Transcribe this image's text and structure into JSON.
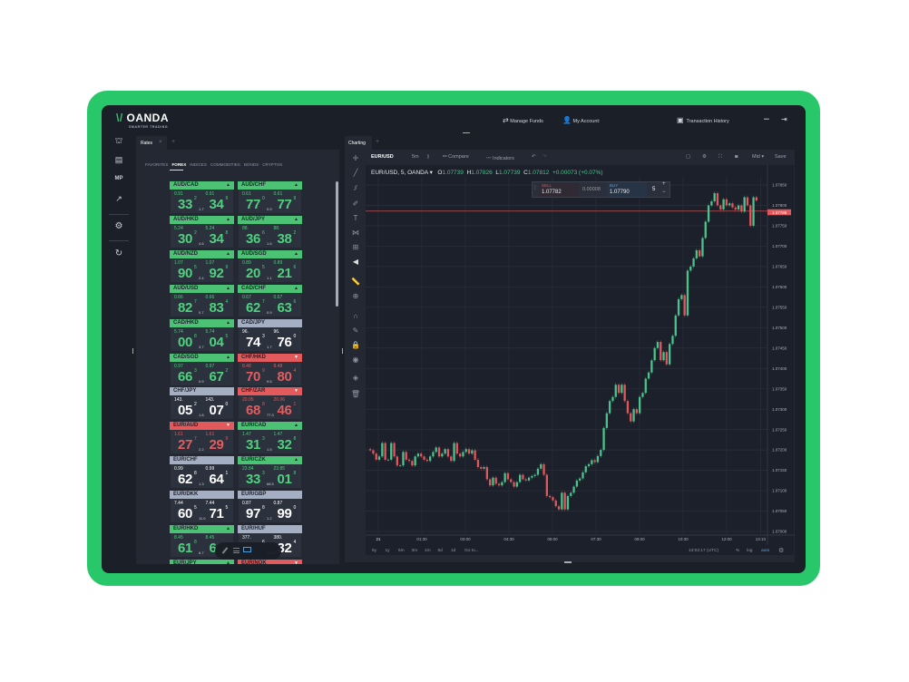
{
  "brand": {
    "name": "OANDA",
    "tagline": "SMARTER TRADING",
    "accent": "#27c76a"
  },
  "header": {
    "manage_funds": "Manage Funds",
    "my_account": "My Account:",
    "transaction_history": "Transaction History",
    "more": "•••"
  },
  "sidebar": {
    "items": [
      {
        "icon": "bank-icon"
      },
      {
        "icon": "news-icon"
      },
      {
        "label": "MP"
      },
      {
        "icon": "chart-trend-icon"
      },
      {
        "icon": "gear-icon"
      },
      {
        "icon": "refresh-icon"
      }
    ]
  },
  "rates": {
    "tab": "Rates",
    "close": "×",
    "add": "+",
    "categories": [
      "FAVORITES",
      "FOREX",
      "INDICES",
      "COMMODITIES",
      "BONDS",
      "CRYPTOS"
    ],
    "active_category": "FOREX",
    "colors": {
      "up": "#4cc274",
      "down": "#e25a5c",
      "neutral": "#a4afc4",
      "up_text": "#4fd17e",
      "down_text": "#e35d5f",
      "neutral_text": "#ffffff"
    },
    "tiles": [
      {
        "pair": "AUD/CAD",
        "dir": "up",
        "sell": {
          "big": "0.91",
          "pips": "33",
          "frac": "2"
        },
        "buy": {
          "big": "0.91",
          "pips": "34",
          "frac": "9"
        },
        "spread": "1.7"
      },
      {
        "pair": "AUD/CHF",
        "dir": "up",
        "sell": {
          "big": "0.61",
          "pips": "77",
          "frac": "0"
        },
        "buy": {
          "big": "0.61",
          "pips": "77",
          "frac": "9"
        },
        "spread": "0.9"
      },
      {
        "pair": "AUD/HKD",
        "dir": "up",
        "sell": {
          "big": "5.24",
          "pips": "30",
          "frac": "2"
        },
        "buy": {
          "big": "5.24",
          "pips": "34",
          "frac": "8"
        },
        "spread": "4.6"
      },
      {
        "pair": "AUD/JPY",
        "dir": "up",
        "sell": {
          "big": "88.",
          "pips": "36",
          "frac": "6"
        },
        "buy": {
          "big": "88.",
          "pips": "38",
          "frac": "2"
        },
        "spread": "1.6"
      },
      {
        "pair": "AUD/NZD",
        "dir": "up",
        "sell": {
          "big": "1.07",
          "pips": "90",
          "frac": "5"
        },
        "buy": {
          "big": "1.07",
          "pips": "92",
          "frac": "9"
        },
        "spread": "2.4"
      },
      {
        "pair": "AUD/SGD",
        "dir": "up",
        "sell": {
          "big": "0.89",
          "pips": "20",
          "frac": "5"
        },
        "buy": {
          "big": "0.89",
          "pips": "21",
          "frac": "6"
        },
        "spread": "1.1"
      },
      {
        "pair": "AUD/USD",
        "dir": "up",
        "sell": {
          "big": "0.66",
          "pips": "82",
          "frac": "7"
        },
        "buy": {
          "big": "0.66",
          "pips": "83",
          "frac": "4"
        },
        "spread": "0.7"
      },
      {
        "pair": "CAD/CHF",
        "dir": "up",
        "sell": {
          "big": "0.67",
          "pips": "62",
          "frac": "7"
        },
        "buy": {
          "big": "0.67",
          "pips": "63",
          "frac": "6"
        },
        "spread": "0.9"
      },
      {
        "pair": "CAD/HKD",
        "dir": "up",
        "sell": {
          "big": "5.74",
          "pips": "00",
          "frac": "8"
        },
        "buy": {
          "big": "5.74",
          "pips": "04",
          "frac": "5"
        },
        "spread": "3.7"
      },
      {
        "pair": "CAD/JPY",
        "dir": "neutral",
        "sell": {
          "big": "96.",
          "pips": "74",
          "frac": "3"
        },
        "buy": {
          "big": "96.",
          "pips": "76",
          "frac": "0"
        },
        "spread": "1.7"
      },
      {
        "pair": "CAD/SGD",
        "dir": "up",
        "sell": {
          "big": "0.97",
          "pips": "66",
          "frac": "3"
        },
        "buy": {
          "big": "0.97",
          "pips": "67",
          "frac": "2"
        },
        "spread": "0.9"
      },
      {
        "pair": "CHF/HKD",
        "dir": "down",
        "sell": {
          "big": "8.48",
          "pips": "70",
          "frac": "9"
        },
        "buy": {
          "big": "8.48",
          "pips": "80",
          "frac": "4"
        },
        "spread": "9.5"
      },
      {
        "pair": "CHF/JPY",
        "dir": "neutral",
        "sell": {
          "big": "143.",
          "pips": "05",
          "frac": "2"
        },
        "buy": {
          "big": "143.",
          "pips": "07",
          "frac": "0"
        },
        "spread": "1.8"
      },
      {
        "pair": "CHF/ZAR",
        "dir": "down",
        "sell": {
          "big": "20.05",
          "pips": "68",
          "frac": "8"
        },
        "buy": {
          "big": "20.06",
          "pips": "46",
          "frac": "1"
        },
        "spread": "77.3"
      },
      {
        "pair": "EUR/AUD",
        "dir": "down",
        "sell": {
          "big": "1.61",
          "pips": "27",
          "frac": "7"
        },
        "buy": {
          "big": "1.61",
          "pips": "29",
          "frac": "9"
        },
        "spread": "2.2"
      },
      {
        "pair": "EUR/CAD",
        "dir": "up",
        "sell": {
          "big": "1.47",
          "pips": "31",
          "frac": "3"
        },
        "buy": {
          "big": "1.47",
          "pips": "32",
          "frac": "8"
        },
        "spread": "1.5"
      },
      {
        "pair": "EUR/CHF",
        "dir": "neutral",
        "sell": {
          "big": "0.99",
          "pips": "62",
          "frac": "8"
        },
        "buy": {
          "big": "0.99",
          "pips": "64",
          "frac": "1"
        },
        "spread": "1.3"
      },
      {
        "pair": "EUR/CZK",
        "dir": "up",
        "sell": {
          "big": "23.84",
          "pips": "33",
          "frac": "3"
        },
        "buy": {
          "big": "23.85",
          "pips": "01",
          "frac": "8"
        },
        "spread": "68.5"
      },
      {
        "pair": "EUR/DKK",
        "dir": "neutral",
        "sell": {
          "big": "7.44",
          "pips": "60",
          "frac": "5"
        },
        "buy": {
          "big": "7.44",
          "pips": "71",
          "frac": "5"
        },
        "spread": "11.0"
      },
      {
        "pair": "EUR/GBP",
        "dir": "neutral",
        "sell": {
          "big": "0.87",
          "pips": "97",
          "frac": "8"
        },
        "buy": {
          "big": "0.87",
          "pips": "99",
          "frac": "0"
        },
        "spread": "1.2"
      },
      {
        "pair": "EUR/HKD",
        "dir": "up",
        "sell": {
          "big": "8.45",
          "pips": "61",
          "frac": "8"
        },
        "buy": {
          "big": "8.45",
          "pips": "6",
          "frac": ""
        },
        "spread": "6.7"
      },
      {
        "pair": "EUR/HUF",
        "dir": "neutral",
        "sell": {
          "big": "377.",
          "pips": "",
          "frac": "6"
        },
        "buy": {
          "big": "380.",
          "pips": "32",
          "frac": "4"
        },
        "spread": "299.8"
      },
      {
        "pair": "EUR/JPY",
        "dir": "up",
        "sell": {
          "big": "",
          "pips": "",
          "frac": ""
        },
        "buy": {
          "big": "",
          "pips": "",
          "frac": ""
        },
        "spread": ""
      },
      {
        "pair": "EUR/NOK",
        "dir": "down",
        "sell": {
          "big": "",
          "pips": "",
          "frac": ""
        },
        "buy": {
          "big": "",
          "pips": "",
          "frac": ""
        },
        "spread": ""
      }
    ]
  },
  "charting": {
    "tab": "Charting",
    "add": "+",
    "symbol": "EUR/USD",
    "interval": "5m",
    "compare": "Compare",
    "indicators": "Indicators",
    "price_source": "Mid ▾",
    "save": "Save",
    "legend": {
      "title": "EUR/USD, 5, OANDA ▾",
      "o_label": "O",
      "o": "1.07739",
      "h_label": "H",
      "h": "1.07826",
      "l_label": "L",
      "l": "1.07739",
      "c_label": "C",
      "c": "1.07812",
      "change": "+0.00073 (+0.07%)"
    },
    "trade": {
      "sell_label": "SELL",
      "sell_price": "1.07782",
      "spread": "0.00008",
      "buy_label": "BUY",
      "buy_price": "1.07790",
      "quantity": "5",
      "plus": "+",
      "minus": "−"
    },
    "ranges": [
      "5y",
      "1y",
      "6m",
      "3m",
      "1m",
      "5d",
      "1d"
    ],
    "goto": "Go to...",
    "clock": "13:02:17 (UTC)",
    "pct": "%",
    "log": "log",
    "auto": "auto"
  },
  "chart_data": {
    "type": "candlestick",
    "symbol": "EUR/USD",
    "interval_minutes": 5,
    "ylim": [
      1.07,
      1.0787
    ],
    "y_ticks": [
      "1.07000",
      "1.07050",
      "1.07100",
      "1.07150",
      "1.07200",
      "1.07250",
      "1.07300",
      "1.07350",
      "1.07400",
      "1.07450",
      "1.07500",
      "1.07550",
      "1.07600",
      "1.07650",
      "1.07700",
      "1.07750",
      "1.07800",
      "1.07850"
    ],
    "x_ticks": [
      {
        "label": "21",
        "minute": 0
      },
      {
        "label": "01:30",
        "minute": 90
      },
      {
        "label": "03:00",
        "minute": 180
      },
      {
        "label": "04:30",
        "minute": 270
      },
      {
        "label": "06:00",
        "minute": 360
      },
      {
        "label": "07:30",
        "minute": 450
      },
      {
        "label": "09:00",
        "minute": 540
      },
      {
        "label": "10:30",
        "minute": 630
      },
      {
        "label": "12:00",
        "minute": 720
      },
      {
        "label": "13:10",
        "minute": 790
      }
    ],
    "current_price": "1.07786",
    "up_color": "#4cc28c",
    "down_color": "#e2575c",
    "closes": [
      1.07199,
      1.07191,
      1.07176,
      1.07184,
      1.07217,
      1.07176,
      1.07176,
      1.07217,
      1.07184,
      1.07162,
      1.07162,
      1.07195,
      1.07176,
      1.07173,
      1.07162,
      1.07184,
      1.07191,
      1.07184,
      1.07176,
      1.07173,
      1.07184,
      1.07195,
      1.07206,
      1.07184,
      1.07191,
      1.07202,
      1.07184,
      1.07173,
      1.07217,
      1.07191,
      1.07184,
      1.07195,
      1.07202,
      1.07191,
      1.07199,
      1.07176,
      1.07158,
      1.07154,
      1.07158,
      1.07128,
      1.07113,
      1.07132,
      1.07117,
      1.07113,
      1.07121,
      1.07143,
      1.07128,
      1.07121,
      1.0711,
      1.07121,
      1.07139,
      1.07128,
      1.07125,
      1.07132,
      1.07136,
      1.07139,
      1.07154,
      1.07165,
      1.07139,
      1.07087,
      1.07084,
      1.07076,
      1.07062,
      1.07054,
      1.07095,
      1.07054,
      1.07087,
      1.07095,
      1.0711,
      1.07125,
      1.0713,
      1.07145,
      1.0716,
      1.07165,
      1.07175,
      1.0717,
      1.07185,
      1.072,
      1.07254,
      1.0729,
      1.0732,
      1.0733,
      1.0736,
      1.0734,
      1.0736,
      1.0732,
      1.0729,
      1.0727,
      1.073,
      1.0729,
      1.0733,
      1.0734,
      1.07375,
      1.0739,
      1.0742,
      1.0745,
      1.07465,
      1.0742,
      1.0744,
      1.0741,
      1.0746,
      1.0748,
      1.0753,
      1.0757,
      1.0758,
      1.0753,
      1.0764,
      1.0765,
      1.0767,
      1.0769,
      1.07675,
      1.0772,
      1.0776,
      1.078,
      1.0781,
      1.0783,
      1.078,
      1.0779,
      1.07815,
      1.078,
      1.07805,
      1.07795,
      1.0779,
      1.078,
      1.07785,
      1.0782,
      1.078,
      1.0775,
      1.0782,
      1.07812
    ]
  }
}
